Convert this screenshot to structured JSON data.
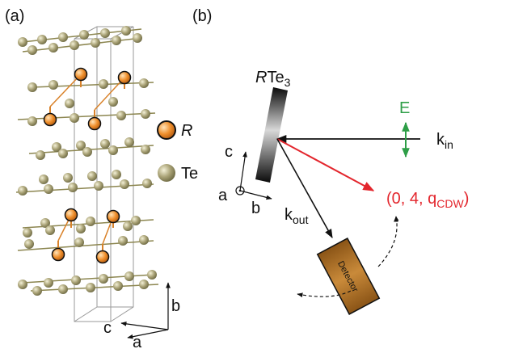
{
  "panels": {
    "a_label": "(a)",
    "b_label": "(b)"
  },
  "legend": {
    "r_label": "R",
    "te_label": "Te",
    "r_color": "#e8892a",
    "te_color": "#a6a070"
  },
  "axes_a": {
    "c": "c",
    "a": "a",
    "b": "b"
  },
  "axes_b": {
    "c": "c",
    "a": "a",
    "b": "b"
  },
  "sample": {
    "name_italic": "R",
    "name_rest": "Te",
    "subscript": "3"
  },
  "beam": {
    "e_label": "E",
    "e_color": "#2e9e47",
    "k_in": "k",
    "k_in_sub": "in",
    "k_out": "k",
    "k_out_sub": "out"
  },
  "cdw": {
    "prefix": "(0, 4, q",
    "sub": "CDW",
    "suffix": ")",
    "color": "#e3262d"
  },
  "detector": {
    "label": "Detector",
    "color": "#b8782a"
  }
}
